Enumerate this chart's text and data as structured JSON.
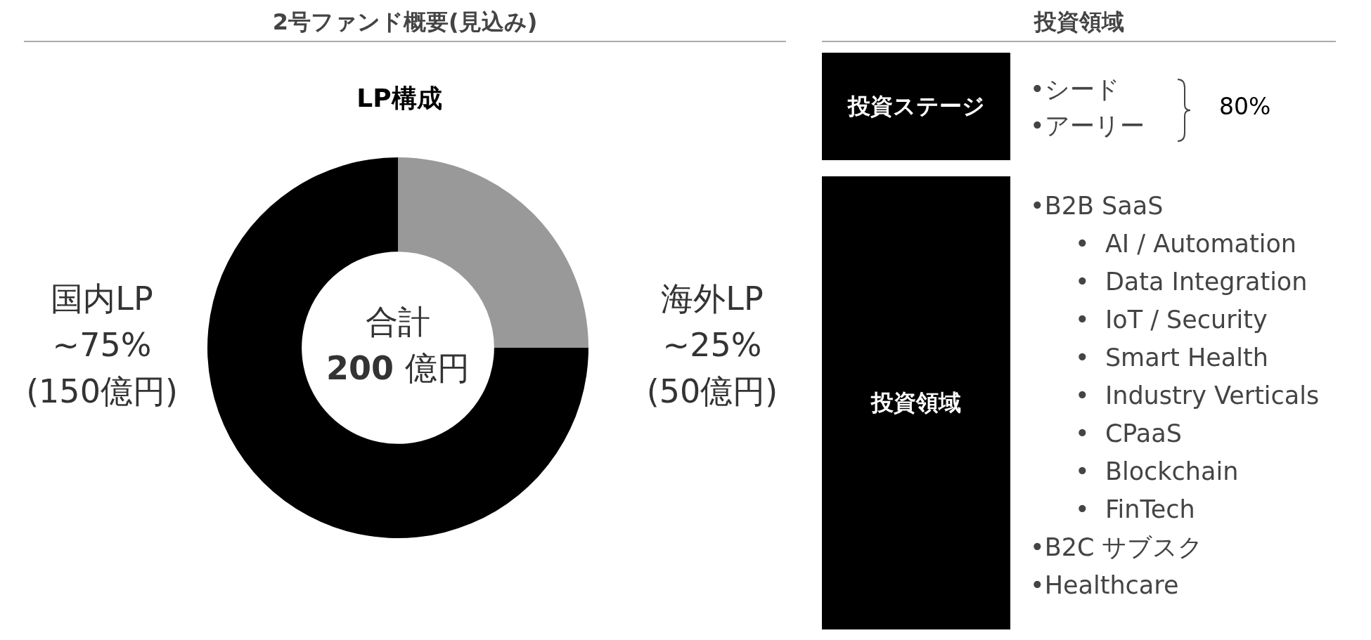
{
  "chart_data": [
    {
      "type": "donut",
      "title": "2号ファンド概要(見込み)",
      "subtitle": "LP構成",
      "categories": [
        "海外LP",
        "国内LP"
      ],
      "values": [
        25,
        75
      ],
      "colors": [
        "#999999",
        "#000000"
      ],
      "value_labels": [
        "~25%\n(50億円)",
        "~75%\n(150億円)"
      ],
      "annotations": [
        "合計",
        "200 億円"
      ]
    },
    {
      "type": "other",
      "title": "投資領域",
      "categories": [
        "投資ステージ",
        "投資領域"
      ],
      "annotations": [
        "•シード",
        "•アーリー",
        "80%",
        "•B2B SaaS",
        "•  AI / Automation",
        "•  Data Integration",
        "•  IoT / Security",
        "•  Smart Health",
        "•  Industry Verticals",
        "•  CPaaS",
        "•  Blockchain",
        "•  FinTech",
        "•B2C サブスク",
        "•Healthcare"
      ]
    }
  ]
}
